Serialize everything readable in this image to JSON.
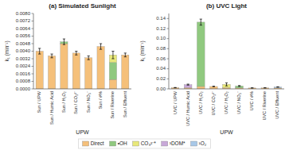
{
  "chart_data": [
    {
      "type": "bar",
      "stacked": true,
      "grid": false,
      "legend": "bottom",
      "title": "(a) Simulated Sunlight",
      "xlabel": "UPW",
      "ylabel": "k₁ (min⁻¹)",
      "categories": [
        "Sun / UPW",
        "Sun / Humic Acid",
        "Sun / H₂O₂",
        "Sun / CO₃²⁻",
        "Sun / NO₃⁻",
        "Sun / #%",
        "Sun / Riverine",
        "Sun / Effluent"
      ],
      "series": [
        {
          "name": "Direct",
          "color": "#f5c07a",
          "values": [
            0.004,
            0.0035,
            0.0048,
            0.0038,
            0.0033,
            0.0045,
            0.001,
            0.0036
          ]
        },
        {
          "name": "•OH",
          "color": "#90c97f",
          "values": [
            0.0,
            0.0,
            0.0002,
            0.0,
            0.0,
            0.0,
            0.0018,
            0.0
          ]
        },
        {
          "name": "CO₃²⁻*",
          "color": "#e8e87a",
          "values": [
            0.0,
            0.0,
            0.0,
            0.0,
            0.0,
            0.0,
            0.0008,
            0.0
          ]
        },
        {
          "name": "³DOM*",
          "color": "#c8a8d8",
          "values": [
            0.0,
            0.0,
            0.0,
            0.0,
            0.0,
            0.0,
            0.0,
            0.0
          ]
        },
        {
          "name": "¹O₂",
          "color": "#a8c8e8",
          "values": [
            0.0,
            0.0,
            0.0,
            0.0,
            0.0,
            0.0,
            0.0,
            0.0
          ]
        }
      ],
      "errors": [
        0.0003,
        0.0002,
        0.0003,
        0.0002,
        0.0002,
        0.0003,
        0.0004,
        0.0002
      ],
      "ylim": [
        0.0,
        0.008
      ],
      "yticks": [
        {
          "value": 0.0,
          "label": "0.0000"
        },
        0.0008,
        0.0016,
        0.0024,
        0.0032,
        {
          "value": 0.004,
          "label": "0.0040"
        },
        0.0048,
        0.0056,
        0.0064,
        0.0072,
        {
          "value": 0.008,
          "label": "0.0080"
        }
      ]
    },
    {
      "type": "bar",
      "stacked": true,
      "grid": false,
      "title": "(b) UVC Light",
      "xlabel": "UPW",
      "ylabel": "k₁ (min⁻¹)",
      "categories": [
        "UVC / UPW",
        "UVC / Humic Acid",
        "UVC / H₂O₂",
        "UVC / CO₃²⁻",
        "UVC / H₂O₂",
        "UVC / NO₃⁻",
        "UVC / #%",
        "UVC / Riverine",
        "UVC / Effluent"
      ],
      "series": [
        {
          "name": "Direct",
          "color": "#f5c07a",
          "values": [
            0.0025,
            0.0025,
            0.0048,
            0.0048,
            0.0025,
            0.0018,
            0.0018,
            0.002,
            0.002
          ]
        },
        {
          "name": "•OH",
          "color": "#90c97f",
          "values": [
            0.0,
            0.0,
            0.128,
            0.0,
            0.0,
            0.004,
            0.0,
            0.0,
            0.0
          ]
        },
        {
          "name": "CO₃²⁻*",
          "color": "#e8e87a",
          "values": [
            0.0,
            0.0,
            0.0,
            0.0,
            0.0065,
            0.0,
            0.0,
            0.0,
            0.0
          ]
        },
        {
          "name": "³DOM*",
          "color": "#c8a8d8",
          "values": [
            0.0,
            0.006,
            0.0,
            0.0,
            0.0,
            0.0,
            0.0,
            0.0,
            0.0
          ]
        },
        {
          "name": "¹O₂",
          "color": "#a8c8e8",
          "values": [
            0.0,
            0.0,
            0.0,
            0.0,
            0.0,
            0.0,
            0.0,
            0.0,
            0.0018
          ]
        }
      ],
      "errors": [
        0.0003,
        0.001,
        0.006,
        0.0005,
        0.003,
        0.0008,
        0.0002,
        0.0003,
        0.0004
      ],
      "ylim": [
        0.0,
        0.15
      ],
      "yticks": [
        {
          "value": 0.0,
          "label": "0.00"
        },
        0.02,
        0.04,
        0.06,
        0.08,
        {
          "value": 0.1,
          "label": "0.10"
        },
        0.12,
        0.14
      ]
    }
  ]
}
